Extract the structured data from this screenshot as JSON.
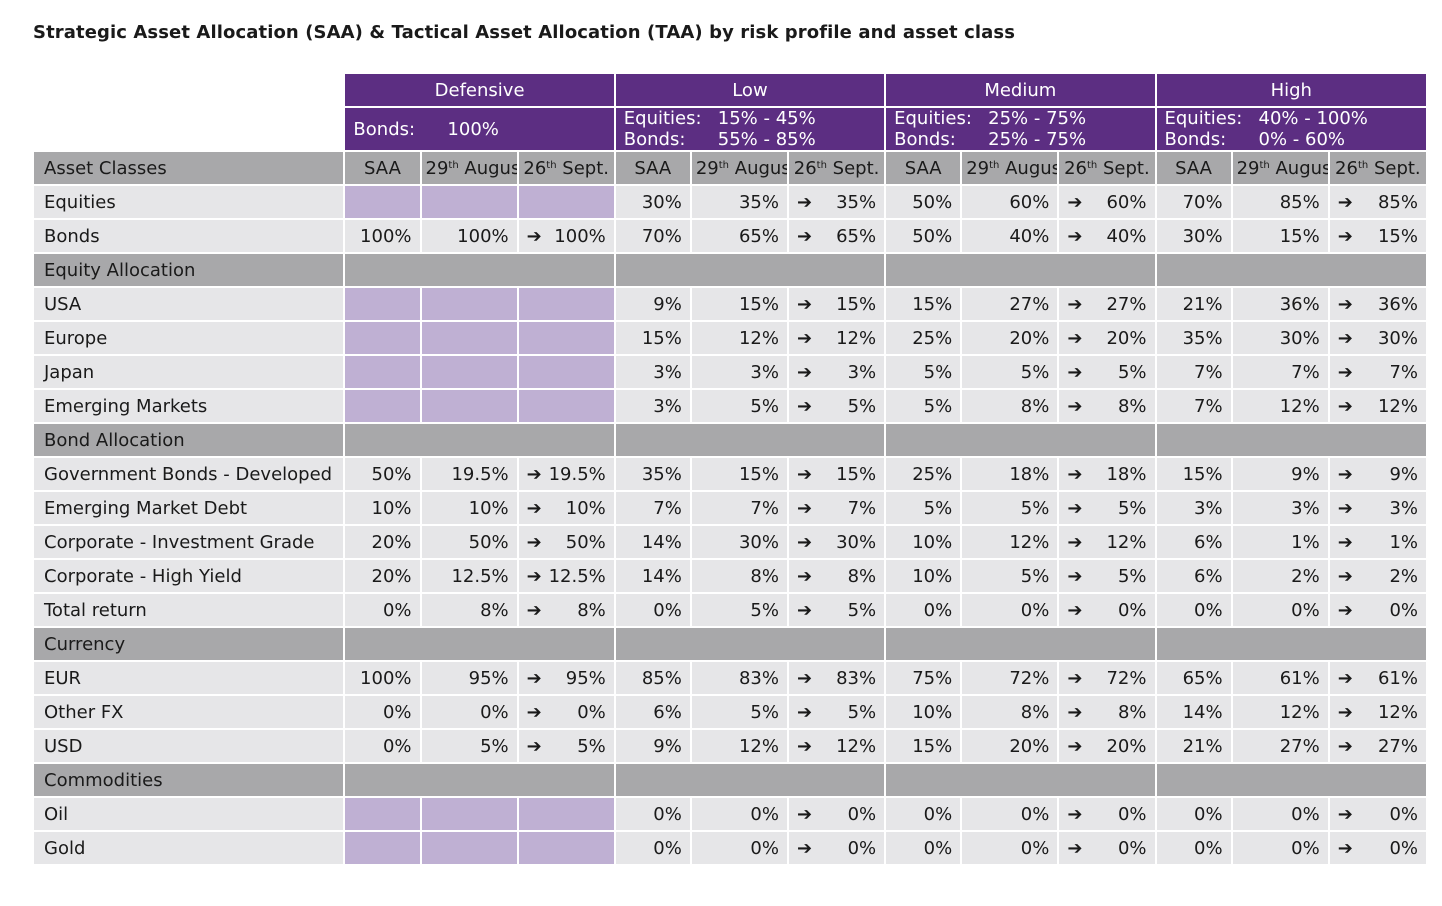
{
  "title": "Strategic Asset Allocation (SAA) & Tactical Asset Allocation (TAA) by risk profile and asset class",
  "profiles": [
    {
      "name": "Defensive",
      "ranges": [
        {
          "label": "Bonds:",
          "value": "100%"
        }
      ]
    },
    {
      "name": "Low",
      "ranges": [
        {
          "label": "Equities:",
          "value": "15% - 45%"
        },
        {
          "label": "Bonds:",
          "value": "55% - 85%"
        }
      ]
    },
    {
      "name": "Medium",
      "ranges": [
        {
          "label": "Equities:",
          "value": "25% - 75%"
        },
        {
          "label": "Bonds:",
          "value": "25% - 75%"
        }
      ]
    },
    {
      "name": "High",
      "ranges": [
        {
          "label": "Equities:",
          "value": "40% - 100%"
        },
        {
          "label": "Bonds:",
          "value": "0% - 60%"
        }
      ]
    }
  ],
  "column_headers": {
    "asset_classes": "Asset Classes",
    "saa": "SAA",
    "aug_day": "29",
    "aug_sup": "th",
    "aug_month": " August",
    "sep_day": "26",
    "sep_sup": "th",
    "sep_month": " Sept."
  },
  "arrow_glyph": "➔",
  "rows": [
    {
      "type": "data",
      "label": "Equities",
      "values": [
        "",
        "",
        "",
        "30%",
        "35%",
        "35%",
        "50%",
        "60%",
        "60%",
        "70%",
        "85%",
        "85%"
      ]
    },
    {
      "type": "data",
      "label": "Bonds",
      "values": [
        "100%",
        "100%",
        "100%",
        "70%",
        "65%",
        "65%",
        "50%",
        "40%",
        "40%",
        "30%",
        "15%",
        "15%"
      ]
    },
    {
      "type": "section",
      "label": "Equity Allocation"
    },
    {
      "type": "data",
      "label": "USA",
      "values": [
        "",
        "",
        "",
        "9%",
        "15%",
        "15%",
        "15%",
        "27%",
        "27%",
        "21%",
        "36%",
        "36%"
      ]
    },
    {
      "type": "data",
      "label": "Europe",
      "values": [
        "",
        "",
        "",
        "15%",
        "12%",
        "12%",
        "25%",
        "20%",
        "20%",
        "35%",
        "30%",
        "30%"
      ]
    },
    {
      "type": "data",
      "label": "Japan",
      "values": [
        "",
        "",
        "",
        "3%",
        "3%",
        "3%",
        "5%",
        "5%",
        "5%",
        "7%",
        "7%",
        "7%"
      ]
    },
    {
      "type": "data",
      "label": "Emerging Markets",
      "values": [
        "",
        "",
        "",
        "3%",
        "5%",
        "5%",
        "5%",
        "8%",
        "8%",
        "7%",
        "12%",
        "12%"
      ]
    },
    {
      "type": "section",
      "label": "Bond Allocation"
    },
    {
      "type": "data",
      "label": "Government Bonds - Developed",
      "values": [
        "50%",
        "19.5%",
        "19.5%",
        "35%",
        "15%",
        "15%",
        "25%",
        "18%",
        "18%",
        "15%",
        "9%",
        "9%"
      ]
    },
    {
      "type": "data",
      "label": "Emerging Market Debt",
      "values": [
        "10%",
        "10%",
        "10%",
        "7%",
        "7%",
        "7%",
        "5%",
        "5%",
        "5%",
        "3%",
        "3%",
        "3%"
      ]
    },
    {
      "type": "data",
      "label": "Corporate - Investment Grade",
      "values": [
        "20%",
        "50%",
        "50%",
        "14%",
        "30%",
        "30%",
        "10%",
        "12%",
        "12%",
        "6%",
        "1%",
        "1%"
      ]
    },
    {
      "type": "data",
      "label": "Corporate - High Yield",
      "values": [
        "20%",
        "12.5%",
        "12.5%",
        "14%",
        "8%",
        "8%",
        "10%",
        "5%",
        "5%",
        "6%",
        "2%",
        "2%"
      ]
    },
    {
      "type": "data",
      "label": "Total return",
      "values": [
        "0%",
        "8%",
        "8%",
        "0%",
        "5%",
        "5%",
        "0%",
        "0%",
        "0%",
        "0%",
        "0%",
        "0%"
      ]
    },
    {
      "type": "section",
      "label": "Currency"
    },
    {
      "type": "data",
      "label": "EUR",
      "values": [
        "100%",
        "95%",
        "95%",
        "85%",
        "83%",
        "83%",
        "75%",
        "72%",
        "72%",
        "65%",
        "61%",
        "61%"
      ]
    },
    {
      "type": "data",
      "label": "Other FX",
      "values": [
        "0%",
        "0%",
        "0%",
        "6%",
        "5%",
        "5%",
        "10%",
        "8%",
        "8%",
        "14%",
        "12%",
        "12%"
      ]
    },
    {
      "type": "data",
      "label": "USD",
      "values": [
        "0%",
        "5%",
        "5%",
        "9%",
        "12%",
        "12%",
        "15%",
        "20%",
        "20%",
        "21%",
        "27%",
        "27%"
      ]
    },
    {
      "type": "section",
      "label": "Commodities"
    },
    {
      "type": "data",
      "label": "Oil",
      "values": [
        "",
        "",
        "",
        "0%",
        "0%",
        "0%",
        "0%",
        "0%",
        "0%",
        "0%",
        "0%",
        "0%"
      ]
    },
    {
      "type": "data",
      "label": "Gold",
      "values": [
        "",
        "",
        "",
        "0%",
        "0%",
        "0%",
        "0%",
        "0%",
        "0%",
        "0%",
        "0%",
        "0%"
      ]
    }
  ],
  "colors": {
    "header_purple": "#5c2e82",
    "empty_cell_lavender": "#bfb0d3",
    "row_light_gray": "#e6e6e8",
    "section_gray": "#a8a8aa"
  }
}
